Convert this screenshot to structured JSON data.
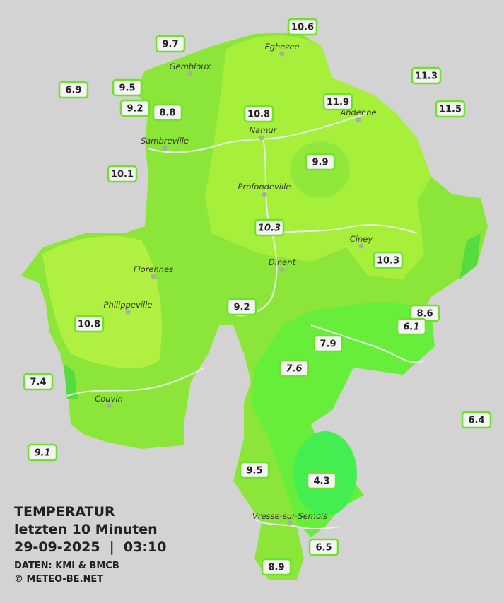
{
  "title": {
    "heading": "TEMPERATUR",
    "period": "letzten 10 Minuten",
    "datetime": "29-09-2025  |  03:10",
    "source": "DATEN: KMI & BMCB",
    "copyright": "© METEO-BE.NET"
  },
  "towns": [
    {
      "name": "Eghezee"
    },
    {
      "name": "Gembloux"
    },
    {
      "name": "Andenne"
    },
    {
      "name": "Sambreville"
    },
    {
      "name": "Namur"
    },
    {
      "name": "Profondeville"
    },
    {
      "name": "Ciney"
    },
    {
      "name": "Dinant"
    },
    {
      "name": "Florennes"
    },
    {
      "name": "Philippeville"
    },
    {
      "name": "Couvin"
    },
    {
      "name": "Vresse-sur-Semois"
    }
  ],
  "stations": [
    {
      "value": 10.6
    },
    {
      "value": 9.7
    },
    {
      "value": 11.3
    },
    {
      "value": 6.9
    },
    {
      "value": 9.5
    },
    {
      "value": 9.2
    },
    {
      "value": 8.8
    },
    {
      "value": 10.8
    },
    {
      "value": 11.9
    },
    {
      "value": 11.5
    },
    {
      "value": 9.9
    },
    {
      "value": 10.1
    },
    {
      "value": 10.3
    },
    {
      "value": 10.3
    },
    {
      "value": 9.2
    },
    {
      "value": 8.6
    },
    {
      "value": 6.1
    },
    {
      "value": 10.8
    },
    {
      "value": 7.9
    },
    {
      "value": 7.6
    },
    {
      "value": 7.4
    },
    {
      "value": 6.4
    },
    {
      "value": 9.1
    },
    {
      "value": 9.5
    },
    {
      "value": 4.3
    },
    {
      "value": 6.5
    },
    {
      "value": 8.9
    }
  ]
}
